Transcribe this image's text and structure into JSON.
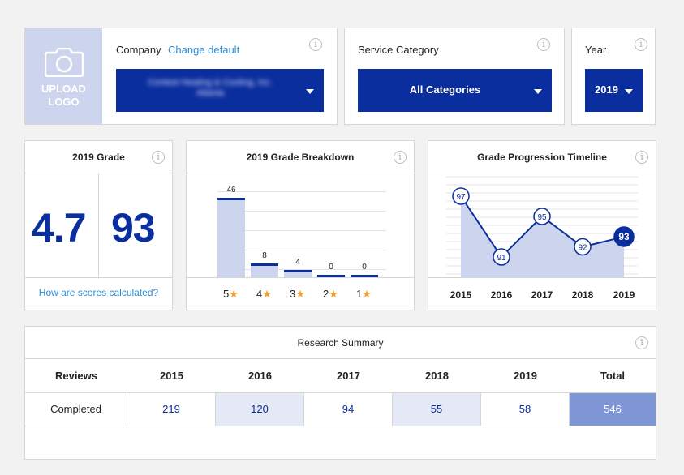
{
  "header": {
    "upload_logo": "UPLOAD\nLOGO",
    "company_label": "Company",
    "change_default": "Change default",
    "company_name": "Contest Heating & Cooling, Inc.",
    "company_location": "Atlanta",
    "service_label": "Service Category",
    "service_value": "All Categories",
    "year_label": "Year",
    "year_value": "2019"
  },
  "grade": {
    "title": "2019 Grade",
    "score": "4.7",
    "percent": "93",
    "link": "How are scores calculated?"
  },
  "breakdown": {
    "title": "2019 Grade Breakdown",
    "chart_data": {
      "type": "bar",
      "categories": [
        "5",
        "4",
        "3",
        "2",
        "1"
      ],
      "values": [
        46,
        8,
        4,
        0,
        0
      ],
      "ylim": [
        0,
        50
      ]
    }
  },
  "timeline": {
    "title": "Grade Progression Timeline",
    "chart_data": {
      "type": "area",
      "x": [
        "2015",
        "2016",
        "2017",
        "2018",
        "2019"
      ],
      "values": [
        97,
        91,
        95,
        92,
        93
      ],
      "ylim": [
        89,
        99
      ]
    }
  },
  "summary": {
    "title": "Research Summary",
    "row_header": "Reviews",
    "row_label": "Completed",
    "columns": [
      "2015",
      "2016",
      "2017",
      "2018",
      "2019",
      "Total"
    ],
    "values": [
      "219",
      "120",
      "94",
      "55",
      "58",
      "546"
    ]
  },
  "colors": {
    "navy": "#0b2e9e",
    "light": "#cdd4ee",
    "star": "#f0a030",
    "link": "#2b8dd6",
    "total": "#7f96d6"
  },
  "icons": {
    "info": "info-icon",
    "camera": "camera-icon",
    "caret": "caret-down-icon",
    "star": "star-icon"
  }
}
